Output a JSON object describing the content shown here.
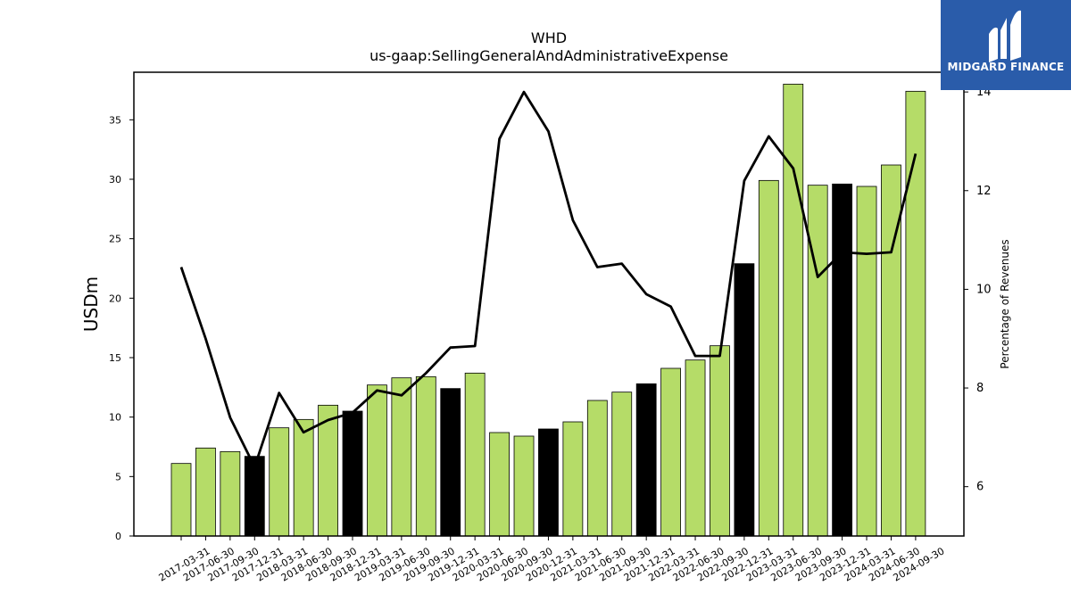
{
  "logo": {
    "text": "MIDGARD FINANCE",
    "icon": "midgard-logo-icon",
    "bg_color": "#2a5caa"
  },
  "colors": {
    "bar_green": "#b5dc68",
    "bar_black": "#000000",
    "line": "#000000"
  },
  "chart_data": {
    "type": "bar",
    "title": "WHD",
    "subtitle": "us-gaap:SellingGeneralAndAdministrativeExpense",
    "ylabel": "USDm",
    "y2label": "Percentage of Revenues",
    "ylim": [
      0,
      39
    ],
    "yticks": [
      0,
      5,
      10,
      15,
      20,
      25,
      30,
      35
    ],
    "y2lim": [
      5,
      14.4
    ],
    "y2ticks": [
      6,
      8,
      10,
      12,
      14
    ],
    "grid": false,
    "categories": [
      "2017-03-31",
      "2017-06-30",
      "2017-09-30",
      "2017-12-31",
      "2018-03-31",
      "2018-06-30",
      "2018-09-30",
      "2018-12-31",
      "2019-03-31",
      "2019-06-30",
      "2019-09-30",
      "2019-12-31",
      "2020-03-31",
      "2020-06-30",
      "2020-09-30",
      "2020-12-31",
      "2021-03-31",
      "2021-06-30",
      "2021-09-30",
      "2021-12-31",
      "2022-03-31",
      "2022-06-30",
      "2022-09-30",
      "2022-12-31",
      "2023-03-31",
      "2023-06-30",
      "2023-09-30",
      "2023-12-31",
      "2024-03-31",
      "2024-06-30",
      "2024-09-30"
    ],
    "series": [
      {
        "type": "bar",
        "axis": "left",
        "values": [
          6.1,
          7.4,
          7.1,
          6.7,
          9.1,
          9.8,
          11.0,
          10.5,
          12.7,
          13.3,
          13.4,
          12.4,
          13.7,
          8.7,
          8.4,
          9.0,
          9.6,
          11.4,
          12.1,
          12.8,
          14.1,
          14.8,
          16.0,
          22.9,
          29.9,
          38.0,
          29.5,
          29.6,
          29.4,
          31.2,
          37.4
        ],
        "highlight": [
          false,
          false,
          false,
          true,
          false,
          false,
          false,
          true,
          false,
          false,
          false,
          true,
          false,
          false,
          false,
          true,
          false,
          false,
          false,
          true,
          false,
          false,
          false,
          true,
          false,
          false,
          false,
          true,
          false,
          false,
          false
        ]
      },
      {
        "type": "line",
        "axis": "right",
        "values": [
          10.45,
          9.0,
          7.4,
          6.4,
          7.9,
          7.1,
          7.35,
          7.5,
          7.95,
          7.85,
          8.3,
          8.82,
          8.85,
          13.05,
          14.0,
          13.2,
          11.4,
          10.45,
          10.52,
          9.9,
          9.65,
          8.65,
          8.65,
          12.2,
          13.1,
          12.45,
          10.25,
          10.75,
          10.72,
          10.75,
          12.75
        ]
      }
    ]
  }
}
